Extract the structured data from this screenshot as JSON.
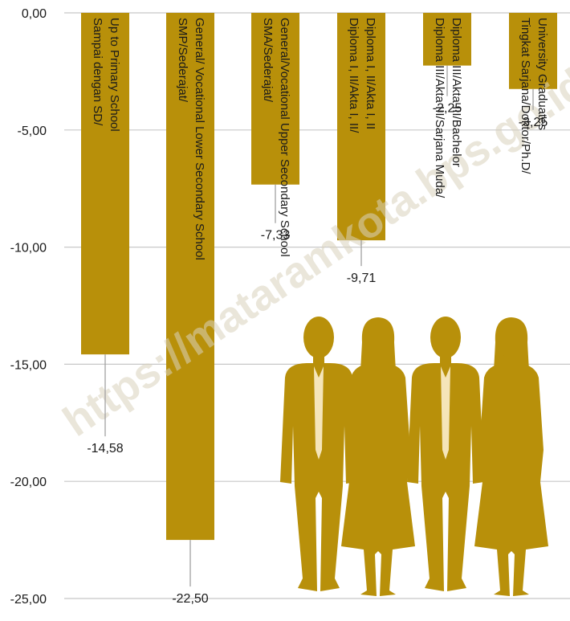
{
  "chart_data": {
    "type": "bar",
    "orientation": "vertical",
    "categories": [
      [
        "Sampai dengan SD/",
        "Up to Primary School"
      ],
      [
        "SMP/Sederajat/",
        "General/ Vocational Lower Secondary School"
      ],
      [
        "SMA/Sederajat/",
        "General/Vocational Upper Secondary School"
      ],
      [
        "Diploma I, II/Akta I, II/",
        "Diploma I, II/Akta I, II"
      ],
      [
        "Diploma III/Akta III/Sarjana Muda/",
        "Diploma III/Akta III/Bachelor"
      ],
      [
        "Tingkat Sarjana/Doktor/Ph.D/",
        "University Graduates"
      ]
    ],
    "values": [
      -14.58,
      -22.5,
      -7.33,
      -9.71,
      -2.25,
      -3.25
    ],
    "data_labels": [
      "-14,58",
      "-22,50",
      "-7,33",
      "-9,71",
      "-2,25",
      "-3,25"
    ],
    "y_ticks": [
      "0,00",
      "-5,00",
      "-10,00",
      "-15,00",
      "-20,00",
      "-25,00"
    ],
    "ylim": [
      -25,
      0
    ],
    "grid": true,
    "bar_color": "#b8900a",
    "grid_color": "#c8c8c8",
    "leader_color": "#9a9a9a"
  },
  "watermark": "https://mataramkota.bps.go.id",
  "decoration": {
    "icon": "business-people-silhouette-icon",
    "color": "#b8900a"
  }
}
